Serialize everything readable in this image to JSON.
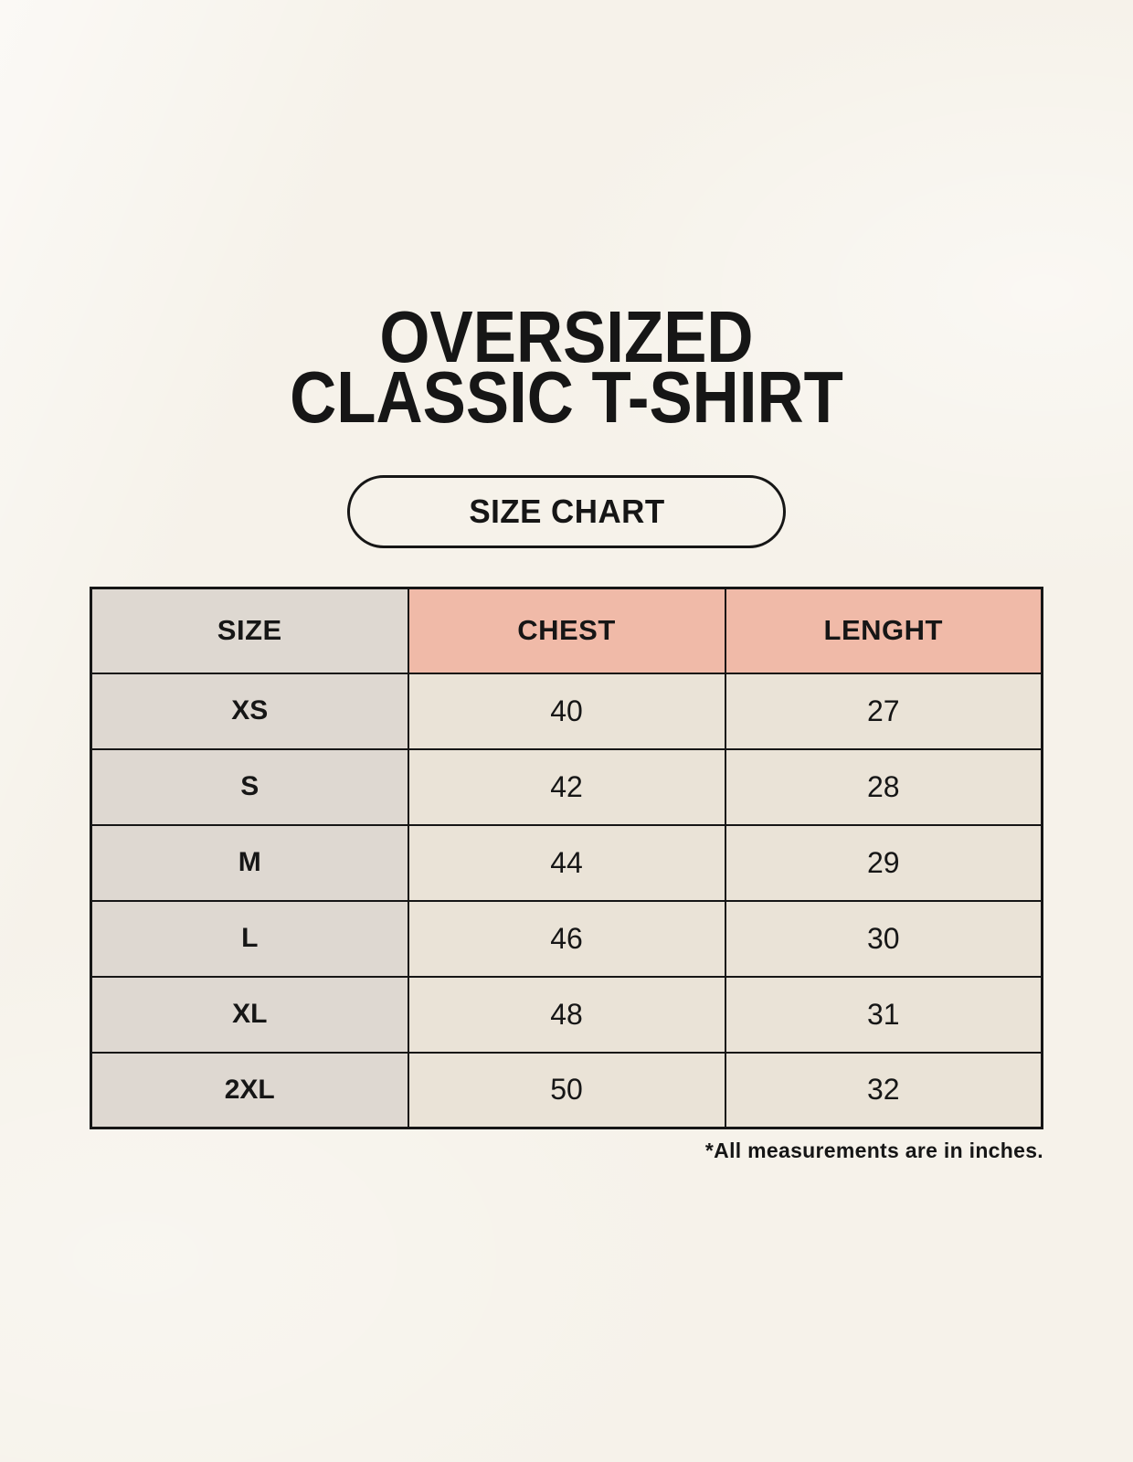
{
  "header": {
    "title_line1": "OVERSIZED",
    "title_line2": "CLASSIC T-SHIRT",
    "badge_label": "SIZE CHART"
  },
  "footnote": {
    "text": "*All measurements are in inches."
  },
  "colors": {
    "page_background": "#f6f2ea",
    "accent_salmon": "#f0baa8",
    "size_column_gray": "#ded8d1",
    "cell_cream": "#eae3d7",
    "ink": "#161616"
  },
  "chart_data": {
    "type": "table",
    "title": "OVERSIZED CLASSIC T-SHIRT",
    "subtitle": "SIZE CHART",
    "units": "inches",
    "columns": [
      "SIZE",
      "CHEST",
      "LENGHT"
    ],
    "rows": [
      [
        "XS",
        40,
        27
      ],
      [
        "S",
        42,
        28
      ],
      [
        "M",
        44,
        29
      ],
      [
        "L",
        46,
        30
      ],
      [
        "XL",
        48,
        31
      ],
      [
        "2XL",
        50,
        32
      ]
    ],
    "footnote": "*All measurements are in inches."
  }
}
